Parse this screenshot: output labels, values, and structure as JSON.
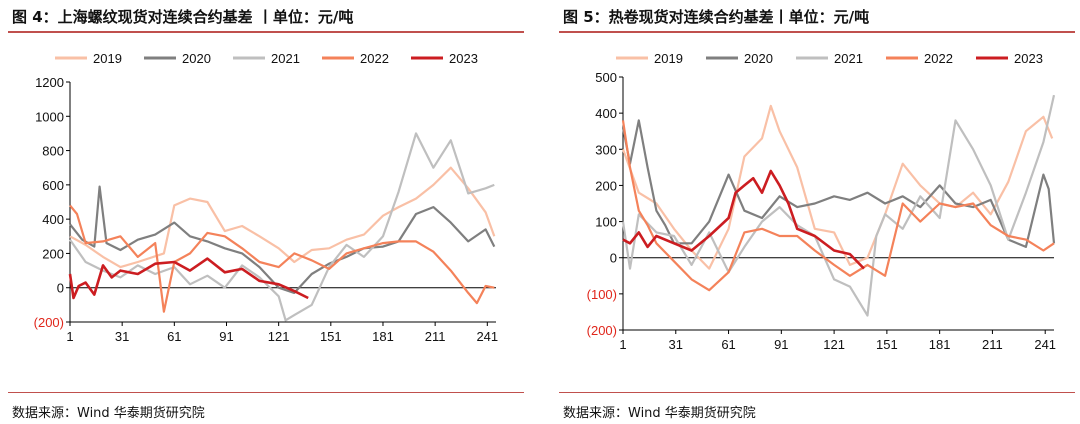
{
  "charts": [
    {
      "title": "图 4：上海螺纹现货对连续合约基差  丨单位：元/吨",
      "source": "数据来源：Wind 华泰期货研究院"
    },
    {
      "title": "图 5：热卷现货对连续合约基差丨单位：元/吨",
      "source": "数据来源：Wind 华泰期货研究院"
    }
  ],
  "chart_data": [
    {
      "type": "line",
      "title": "图 4：上海螺纹现货对连续合约基差  丨单位：元/吨",
      "ylim": [
        -200,
        1200
      ],
      "yticks": [
        -200,
        0,
        200,
        400,
        600,
        800,
        1000,
        1200
      ],
      "ytick_labels": [
        "(200)",
        "0",
        "200",
        "400",
        "600",
        "800",
        "1000",
        "1200"
      ],
      "xlim": [
        1,
        246
      ],
      "xticks": [
        1,
        31,
        61,
        91,
        121,
        151,
        181,
        211,
        241
      ],
      "legend_position": "top",
      "series": [
        {
          "name": "2019",
          "color": "#f9c0a6",
          "x": [
            1,
            10,
            20,
            30,
            40,
            55,
            61,
            70,
            80,
            90,
            100,
            110,
            121,
            130,
            140,
            150,
            160,
            170,
            181,
            190,
            200,
            210,
            220,
            230,
            240,
            245
          ],
          "y": [
            300,
            250,
            180,
            120,
            150,
            200,
            480,
            520,
            500,
            330,
            360,
            300,
            230,
            150,
            220,
            230,
            280,
            310,
            420,
            470,
            520,
            600,
            700,
            580,
            440,
            300
          ]
        },
        {
          "name": "2020",
          "color": "#7f7f7f",
          "x": [
            1,
            8,
            15,
            18,
            22,
            30,
            40,
            50,
            61,
            70,
            80,
            90,
            100,
            110,
            121,
            130,
            140,
            150,
            160,
            170,
            181,
            190,
            200,
            210,
            220,
            230,
            240,
            245
          ],
          "y": [
            370,
            280,
            240,
            590,
            260,
            220,
            280,
            310,
            380,
            300,
            270,
            230,
            200,
            120,
            0,
            -30,
            80,
            140,
            180,
            230,
            240,
            270,
            430,
            470,
            380,
            270,
            340,
            240
          ]
        },
        {
          "name": "2021",
          "color": "#bfbfbf",
          "x": [
            1,
            10,
            20,
            30,
            40,
            50,
            61,
            70,
            80,
            90,
            100,
            110,
            121,
            125,
            130,
            140,
            150,
            160,
            170,
            181,
            190,
            200,
            210,
            220,
            230,
            240,
            245
          ],
          "y": [
            280,
            150,
            100,
            60,
            130,
            80,
            120,
            20,
            70,
            0,
            130,
            60,
            -50,
            -190,
            -160,
            -100,
            120,
            250,
            180,
            300,
            560,
            900,
            700,
            860,
            550,
            580,
            600
          ]
        },
        {
          "name": "2022",
          "color": "#f4825a",
          "x": [
            1,
            5,
            10,
            20,
            30,
            40,
            50,
            55,
            61,
            70,
            80,
            90,
            100,
            110,
            121,
            130,
            140,
            150,
            160,
            170,
            181,
            190,
            200,
            210,
            220,
            230,
            235,
            240,
            245
          ],
          "y": [
            480,
            430,
            260,
            270,
            300,
            180,
            260,
            -140,
            150,
            200,
            320,
            300,
            230,
            150,
            120,
            200,
            160,
            110,
            200,
            230,
            260,
            270,
            270,
            210,
            100,
            -30,
            -90,
            10,
            0
          ]
        },
        {
          "name": "2023",
          "color": "#cc1d21",
          "x": [
            1,
            3,
            6,
            10,
            15,
            20,
            25,
            30,
            40,
            50,
            61,
            70,
            80,
            90,
            100,
            110,
            121,
            130,
            138
          ],
          "y": [
            80,
            -60,
            10,
            30,
            -40,
            130,
            60,
            100,
            80,
            140,
            150,
            100,
            170,
            90,
            110,
            40,
            20,
            -20,
            -60
          ]
        }
      ]
    },
    {
      "type": "line",
      "title": "图 5：热卷现货对连续合约基差丨单位：元/吨",
      "ylim": [
        -200,
        500
      ],
      "yticks": [
        -200,
        -100,
        0,
        100,
        200,
        300,
        400,
        500
      ],
      "ytick_labels": [
        "(200)",
        "(100)",
        "0",
        "100",
        "200",
        "300",
        "400",
        "500"
      ],
      "xlim": [
        1,
        246
      ],
      "xticks": [
        1,
        31,
        61,
        91,
        121,
        151,
        181,
        211,
        241
      ],
      "legend_position": "top",
      "series": [
        {
          "name": "2019",
          "color": "#f9c0a6",
          "x": [
            1,
            10,
            20,
            30,
            40,
            50,
            61,
            70,
            80,
            85,
            90,
            100,
            110,
            121,
            130,
            140,
            150,
            160,
            170,
            181,
            190,
            200,
            210,
            220,
            230,
            240,
            245
          ],
          "y": [
            300,
            180,
            150,
            80,
            20,
            -30,
            80,
            280,
            330,
            420,
            350,
            250,
            80,
            70,
            -20,
            0,
            120,
            260,
            200,
            150,
            140,
            180,
            120,
            210,
            350,
            390,
            330
          ]
        },
        {
          "name": "2020",
          "color": "#7f7f7f",
          "x": [
            1,
            5,
            10,
            15,
            20,
            25,
            30,
            40,
            50,
            61,
            70,
            80,
            90,
            100,
            110,
            121,
            130,
            140,
            150,
            160,
            170,
            181,
            190,
            200,
            210,
            220,
            230,
            240,
            243,
            246
          ],
          "y": [
            360,
            260,
            380,
            250,
            130,
            90,
            40,
            40,
            100,
            230,
            130,
            110,
            170,
            140,
            150,
            170,
            160,
            180,
            150,
            170,
            140,
            200,
            150,
            140,
            160,
            50,
            30,
            230,
            190,
            40
          ]
        },
        {
          "name": "2021",
          "color": "#bfbfbf",
          "x": [
            1,
            5,
            10,
            20,
            30,
            40,
            50,
            61,
            70,
            80,
            90,
            100,
            110,
            121,
            130,
            140,
            145,
            150,
            160,
            170,
            181,
            190,
            200,
            210,
            220,
            230,
            240,
            246
          ],
          "y": [
            100,
            -30,
            120,
            70,
            60,
            -20,
            70,
            -40,
            30,
            100,
            140,
            90,
            60,
            -60,
            -80,
            -160,
            60,
            120,
            80,
            170,
            110,
            380,
            300,
            200,
            50,
            180,
            320,
            450
          ]
        },
        {
          "name": "2022",
          "color": "#f4825a",
          "x": [
            1,
            5,
            10,
            15,
            20,
            30,
            40,
            50,
            61,
            70,
            80,
            90,
            100,
            110,
            121,
            130,
            140,
            150,
            160,
            170,
            181,
            190,
            200,
            210,
            220,
            230,
            240,
            246
          ],
          "y": [
            380,
            250,
            130,
            90,
            40,
            -10,
            -60,
            -90,
            -40,
            70,
            80,
            60,
            60,
            20,
            -20,
            -50,
            -20,
            -50,
            150,
            100,
            150,
            140,
            150,
            90,
            60,
            50,
            20,
            40
          ]
        },
        {
          "name": "2023",
          "color": "#cc1d21",
          "x": [
            1,
            5,
            10,
            15,
            20,
            30,
            40,
            50,
            61,
            65,
            70,
            75,
            80,
            85,
            90,
            95,
            100,
            110,
            121,
            130,
            138
          ],
          "y": [
            50,
            40,
            70,
            30,
            60,
            40,
            20,
            60,
            110,
            180,
            200,
            220,
            180,
            240,
            200,
            150,
            80,
            60,
            20,
            10,
            -30
          ]
        }
      ]
    }
  ]
}
